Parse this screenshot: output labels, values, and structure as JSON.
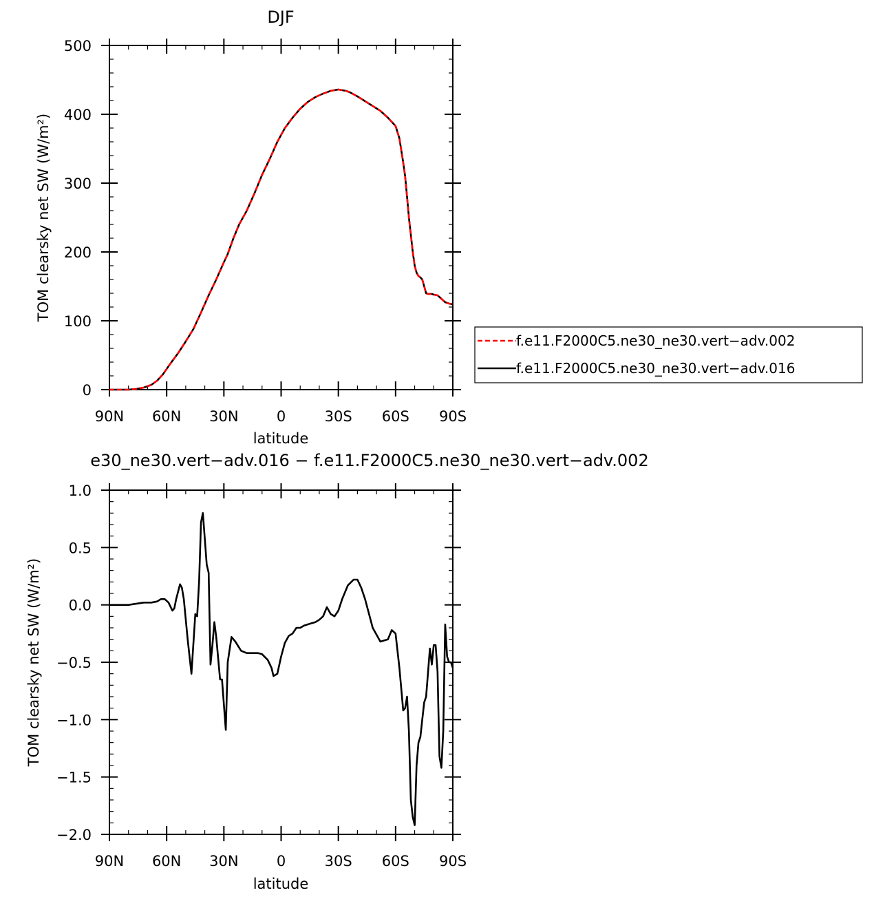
{
  "charts": [
    {
      "type": "line",
      "title": "DJF",
      "xlabel": "latitude",
      "ylabel": "TOM clearsky net SW (W/m²)",
      "xlim": [
        -90,
        90
      ],
      "ylim": [
        0,
        500
      ],
      "x_ticks": [
        -90,
        -60,
        -30,
        0,
        30,
        60,
        90
      ],
      "x_tick_labels": [
        "90N",
        "60N",
        "30N",
        "0",
        "30S",
        "60S",
        "90S"
      ],
      "y_ticks": [
        0,
        100,
        200,
        300,
        400,
        500
      ],
      "y_tick_labels": [
        "0",
        "100",
        "200",
        "300",
        "400",
        "500"
      ],
      "legend": {
        "position": "right"
      },
      "series": [
        {
          "name": "f.e11.F2000C5.ne30_ne30.vert−adv.002",
          "color": "#ff0000",
          "dash": "dashed",
          "x": [
            -90,
            -85,
            -80,
            -76,
            -72,
            -68,
            -65,
            -62,
            -58,
            -54,
            -50,
            -46,
            -42,
            -38,
            -34,
            -30,
            -28,
            -25,
            -22,
            -18,
            -14,
            -10,
            -6,
            -2,
            2,
            6,
            10,
            14,
            18,
            22,
            26,
            30,
            34,
            36,
            40,
            44,
            48,
            52,
            56,
            60,
            62,
            64,
            65,
            66,
            67,
            68,
            69,
            70,
            71,
            72,
            73,
            74,
            75,
            76,
            77,
            78,
            79,
            80,
            82,
            84,
            86,
            88,
            90
          ],
          "y": [
            0,
            0,
            0,
            1,
            3,
            7,
            13,
            22,
            38,
            53,
            70,
            88,
            112,
            137,
            160,
            185,
            197,
            220,
            240,
            260,
            285,
            312,
            335,
            360,
            380,
            395,
            408,
            418,
            425,
            430,
            434,
            436,
            434,
            432,
            426,
            419,
            412,
            405,
            395,
            383,
            365,
            330,
            310,
            280,
            250,
            225,
            200,
            180,
            170,
            165,
            163,
            160,
            150,
            140,
            139,
            139,
            139,
            138,
            137,
            132,
            127,
            125,
            124
          ]
        },
        {
          "name": "f.e11.F2000C5.ne30_ne30.vert−adv.016",
          "color": "#000000",
          "dash": "solid",
          "x": [
            -90,
            -85,
            -80,
            -76,
            -72,
            -68,
            -65,
            -62,
            -58,
            -54,
            -50,
            -46,
            -42,
            -38,
            -34,
            -30,
            -28,
            -25,
            -22,
            -18,
            -14,
            -10,
            -6,
            -2,
            2,
            6,
            10,
            14,
            18,
            22,
            26,
            30,
            34,
            36,
            40,
            44,
            48,
            52,
            56,
            60,
            62,
            64,
            65,
            66,
            67,
            68,
            69,
            70,
            71,
            72,
            73,
            74,
            75,
            76,
            77,
            78,
            79,
            80,
            82,
            84,
            86,
            88,
            90
          ],
          "y": [
            0,
            0,
            0,
            1,
            3,
            7,
            13,
            22,
            38,
            53,
            70,
            88,
            112,
            137,
            160,
            185,
            197,
            220,
            240,
            260,
            285,
            312,
            335,
            360,
            380,
            395,
            408,
            418,
            425,
            430,
            434,
            436,
            434,
            432,
            426,
            419,
            412,
            405,
            395,
            383,
            365,
            330,
            310,
            280,
            250,
            225,
            200,
            180,
            170,
            165,
            163,
            160,
            150,
            140,
            139,
            139,
            139,
            138,
            137,
            132,
            127,
            125,
            124
          ]
        }
      ]
    },
    {
      "type": "line",
      "title": "e30_ne30.vert−adv.016 − f.e11.F2000C5.ne30_ne30.vert−adv.002",
      "xlabel": "latitude",
      "ylabel": "TOM clearsky net SW (W/m²)",
      "xlim": [
        -90,
        90
      ],
      "ylim": [
        -2.0,
        1.0
      ],
      "x_ticks": [
        -90,
        -60,
        -30,
        0,
        30,
        60,
        90
      ],
      "x_tick_labels": [
        "90N",
        "60N",
        "30N",
        "0",
        "30S",
        "60S",
        "90S"
      ],
      "y_ticks": [
        -2.0,
        -1.5,
        -1.0,
        -0.5,
        0.0,
        0.5,
        1.0
      ],
      "y_tick_labels": [
        "−2.0",
        "−1.5",
        "−1.0",
        "−0.5",
        "0.0",
        "0.5",
        "1.0"
      ],
      "series": [
        {
          "color": "#000000",
          "dash": "solid",
          "x": [
            -90,
            -80,
            -72,
            -68,
            -65,
            -63,
            -61,
            -59,
            -57,
            -56,
            -55,
            -53,
            -52,
            -51,
            -49,
            -47,
            -45,
            -44,
            -43,
            -42,
            -41,
            -39,
            -38,
            -37,
            -36,
            -35,
            -34,
            -32,
            -31,
            -29,
            -28,
            -26,
            -24,
            -21,
            -18,
            -15,
            -12,
            -10,
            -7,
            -5,
            -4,
            -2,
            0,
            2,
            4,
            6,
            8,
            10,
            12,
            14,
            16,
            18,
            20,
            22,
            24,
            26,
            28,
            30,
            32,
            35,
            38,
            40,
            42,
            44,
            48,
            52,
            56,
            58,
            60,
            62,
            64,
            65,
            66,
            67,
            68,
            69,
            70,
            71,
            72,
            73,
            74,
            75,
            76,
            78,
            79,
            80,
            81,
            82,
            83,
            84,
            85,
            86,
            87,
            88,
            89,
            90
          ],
          "y": [
            0,
            0,
            0.02,
            0.02,
            0.03,
            0.05,
            0.05,
            0.02,
            -0.05,
            -0.03,
            0.05,
            0.18,
            0.15,
            0.05,
            -0.3,
            -0.6,
            -0.08,
            -0.1,
            0.2,
            0.72,
            0.8,
            0.35,
            0.28,
            -0.52,
            -0.35,
            -0.15,
            -0.28,
            -0.65,
            -0.65,
            -1.09,
            -0.5,
            -0.28,
            -0.32,
            -0.4,
            -0.42,
            -0.42,
            -0.42,
            -0.43,
            -0.48,
            -0.55,
            -0.62,
            -0.6,
            -0.45,
            -0.33,
            -0.27,
            -0.25,
            -0.2,
            -0.2,
            -0.18,
            -0.17,
            -0.16,
            -0.15,
            -0.13,
            -0.1,
            -0.02,
            -0.08,
            -0.1,
            -0.05,
            0.05,
            0.17,
            0.22,
            0.22,
            0.15,
            0.05,
            -0.2,
            -0.32,
            -0.3,
            -0.22,
            -0.25,
            -0.55,
            -0.92,
            -0.9,
            -0.8,
            -1.1,
            -1.7,
            -1.85,
            -1.92,
            -1.4,
            -1.2,
            -1.15,
            -1.0,
            -0.85,
            -0.8,
            -0.38,
            -0.52,
            -0.35,
            -0.35,
            -0.58,
            -1.32,
            -1.42,
            -1.1,
            -0.17,
            -0.45,
            -0.5,
            -0.5,
            -0.55
          ]
        }
      ]
    }
  ]
}
